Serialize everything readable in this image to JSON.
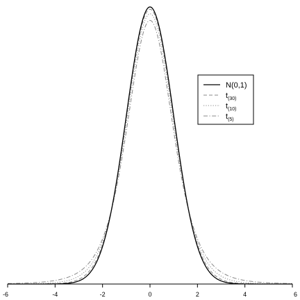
{
  "chart_data": {
    "type": "line",
    "title": "",
    "xlabel": "",
    "ylabel": "",
    "xlim": [
      -6,
      6
    ],
    "ylim": [
      0,
      0.4
    ],
    "x_ticks": [
      -6,
      -4,
      -2,
      0,
      2,
      4,
      6
    ],
    "x_tick_labels": [
      "-6",
      "-4",
      "-2",
      "0",
      "2",
      "4",
      "6"
    ],
    "grid": false,
    "legend_position": "right",
    "series": [
      {
        "name": "N(0,1)",
        "name_base": "N(0,1)",
        "name_sub": "",
        "distribution": "normal",
        "df": null,
        "style": "solid",
        "color": "#000000"
      },
      {
        "name": "t(30)",
        "name_base": "t",
        "name_sub": "(30)",
        "distribution": "t",
        "df": 30,
        "style": "dashed",
        "color": "#888888"
      },
      {
        "name": "t(10)",
        "name_base": "t",
        "name_sub": "(10)",
        "distribution": "t",
        "df": 10,
        "style": "dotted",
        "color": "#888888"
      },
      {
        "name": "t(5)",
        "name_base": "t",
        "name_sub": "(5)",
        "distribution": "t",
        "df": 5,
        "style": "dashdot",
        "color": "#888888"
      }
    ]
  }
}
